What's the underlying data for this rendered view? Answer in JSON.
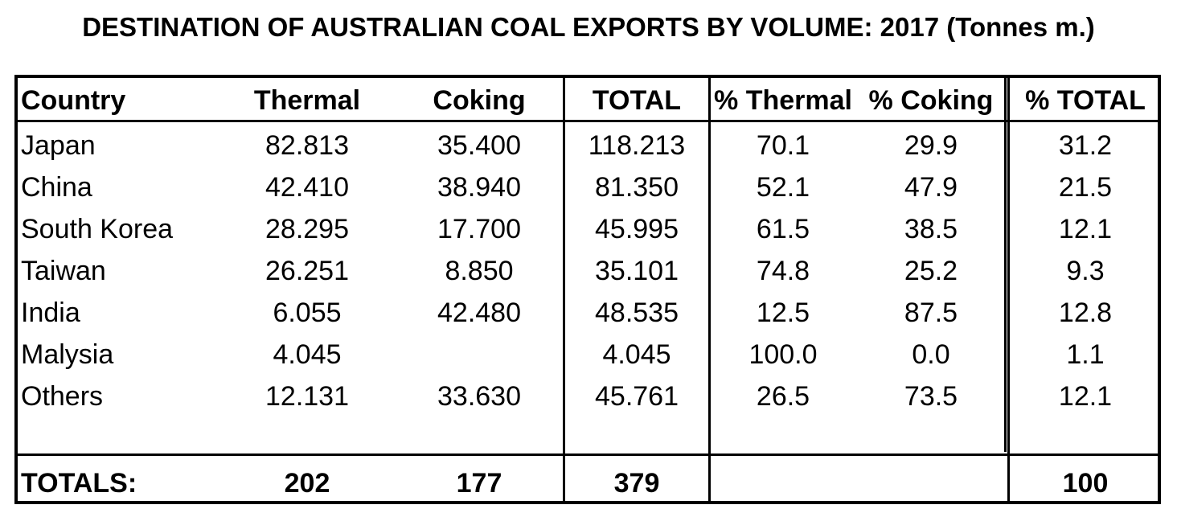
{
  "title": "DESTINATION OF AUSTRALIAN COAL EXPORTS BY VOLUME:  2017  (Tonnes m.)",
  "headers": [
    "Country",
    "Thermal",
    "Coking",
    "TOTAL",
    "% Thermal",
    "% Coking",
    "% TOTAL"
  ],
  "rows": [
    [
      "Japan",
      "82.813",
      "35.400",
      "118.213",
      "70.1",
      "29.9",
      "31.2"
    ],
    [
      "China",
      "42.410",
      "38.940",
      "81.350",
      "52.1",
      "47.9",
      "21.5"
    ],
    [
      "South Korea",
      "28.295",
      "17.700",
      "45.995",
      "61.5",
      "38.5",
      "12.1"
    ],
    [
      "Taiwan",
      "26.251",
      "8.850",
      "35.101",
      "74.8",
      "25.2",
      "9.3"
    ],
    [
      "India",
      "6.055",
      "42.480",
      "48.535",
      "12.5",
      "87.5",
      "12.8"
    ],
    [
      "Malysia",
      "4.045",
      "",
      "4.045",
      "100.0",
      "0.0",
      "1.1"
    ],
    [
      "Others",
      "12.131",
      "33.630",
      "45.761",
      "26.5",
      "73.5",
      "12.1"
    ]
  ],
  "totals": [
    "TOTALS:",
    "202",
    "177",
    "379",
    "",
    "",
    "100"
  ]
}
